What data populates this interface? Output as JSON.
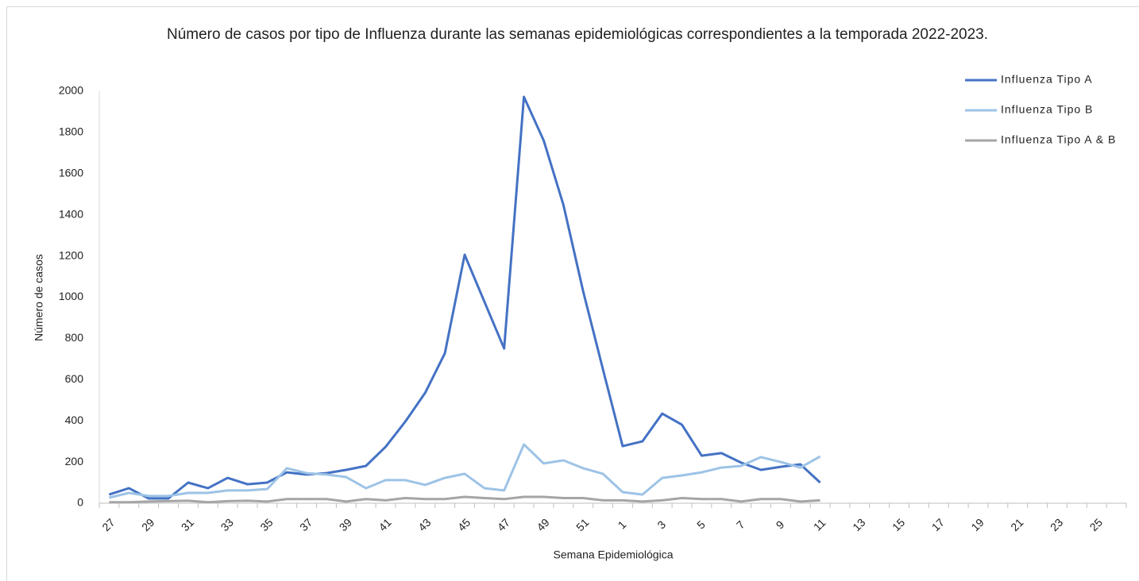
{
  "chart_data": {
    "type": "line",
    "title": "Número de casos por tipo de Influenza durante las semanas epidemiológicas correspondientes a la temporada 2022-2023.",
    "x_label": "Semana Epidemiológica",
    "y_label": "Número de casos",
    "categories": [
      27,
      null,
      29,
      null,
      31,
      null,
      33,
      null,
      35,
      null,
      37,
      null,
      39,
      null,
      41,
      null,
      43,
      null,
      45,
      null,
      47,
      null,
      49,
      null,
      51,
      null,
      1,
      null,
      3,
      null,
      5,
      null,
      7,
      null,
      9,
      null,
      11,
      null,
      13,
      null,
      15,
      null,
      17,
      null,
      19,
      null,
      21,
      null,
      23,
      null,
      25,
      null
    ],
    "series": [
      {
        "name": "Influenza Tipo A",
        "color": "#4472c4",
        "values": [
          42,
          73,
          23,
          23,
          100,
          73,
          123,
          92,
          100,
          150,
          139,
          146,
          162,
          181,
          274,
          397,
          536,
          728,
          1206,
          978,
          751,
          1973,
          1761,
          1449,
          1029,
          650,
          277,
          300,
          435,
          381,
          231,
          243,
          197,
          162,
          177,
          189,
          100,
          null,
          null,
          null,
          null,
          null,
          null,
          null,
          null,
          null,
          null,
          null,
          null,
          null,
          null,
          null
        ]
      },
      {
        "name": "Influenza Tipo B",
        "color": "#9dc3e6",
        "values": [
          27,
          50,
          35,
          35,
          50,
          50,
          62,
          62,
          69,
          170,
          146,
          139,
          127,
          73,
          112,
          112,
          89,
          123,
          143,
          73,
          62,
          285,
          193,
          208,
          170,
          143,
          54,
          42,
          123,
          135,
          150,
          173,
          181,
          224,
          200,
          173,
          227,
          null,
          null,
          null,
          null,
          null,
          null,
          null,
          null,
          null,
          null,
          null,
          null,
          null,
          null,
          null
        ]
      },
      {
        "name": "Influenza Tipo A & B",
        "color": "#a5a5a5",
        "values": [
          5,
          5,
          8,
          10,
          12,
          5,
          10,
          12,
          8,
          20,
          20,
          20,
          8,
          20,
          14,
          25,
          20,
          20,
          31,
          25,
          20,
          31,
          31,
          25,
          25,
          14,
          14,
          8,
          14,
          25,
          20,
          20,
          8,
          20,
          20,
          8,
          14,
          null,
          null,
          null,
          null,
          null,
          null,
          null,
          null,
          null,
          null,
          null,
          null,
          null,
          null,
          null
        ]
      }
    ],
    "ylim": [
      0,
      2000
    ],
    "yticks": [
      0,
      200,
      400,
      600,
      800,
      1000,
      1200,
      1400,
      1600,
      1800,
      2000
    ],
    "grid": false,
    "legend": "top-right"
  }
}
